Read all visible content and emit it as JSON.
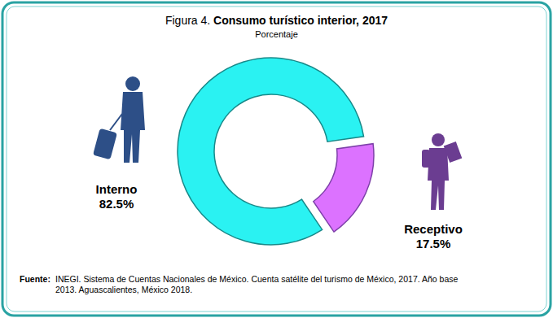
{
  "chart_data": {
    "type": "donut",
    "figure_label": "Figura 4.",
    "title": "Consumo turístico interior, 2017",
    "subtitle": "Porcentaje",
    "categories": [
      "Interno",
      "Receptivo"
    ],
    "values": [
      82.5,
      17.5
    ],
    "value_labels": [
      "82.5%",
      "17.5%"
    ],
    "colors": [
      "#22c3c3",
      "#b25cf2"
    ],
    "data_labels": true,
    "source_label": "Fuente:",
    "source_lines": [
      "INEGI. Sistema de Cuentas Nacionales de México. Cuenta satélite del turismo de México, 2017. Año base",
      "2013. Aguascalientes, México 2018."
    ]
  }
}
